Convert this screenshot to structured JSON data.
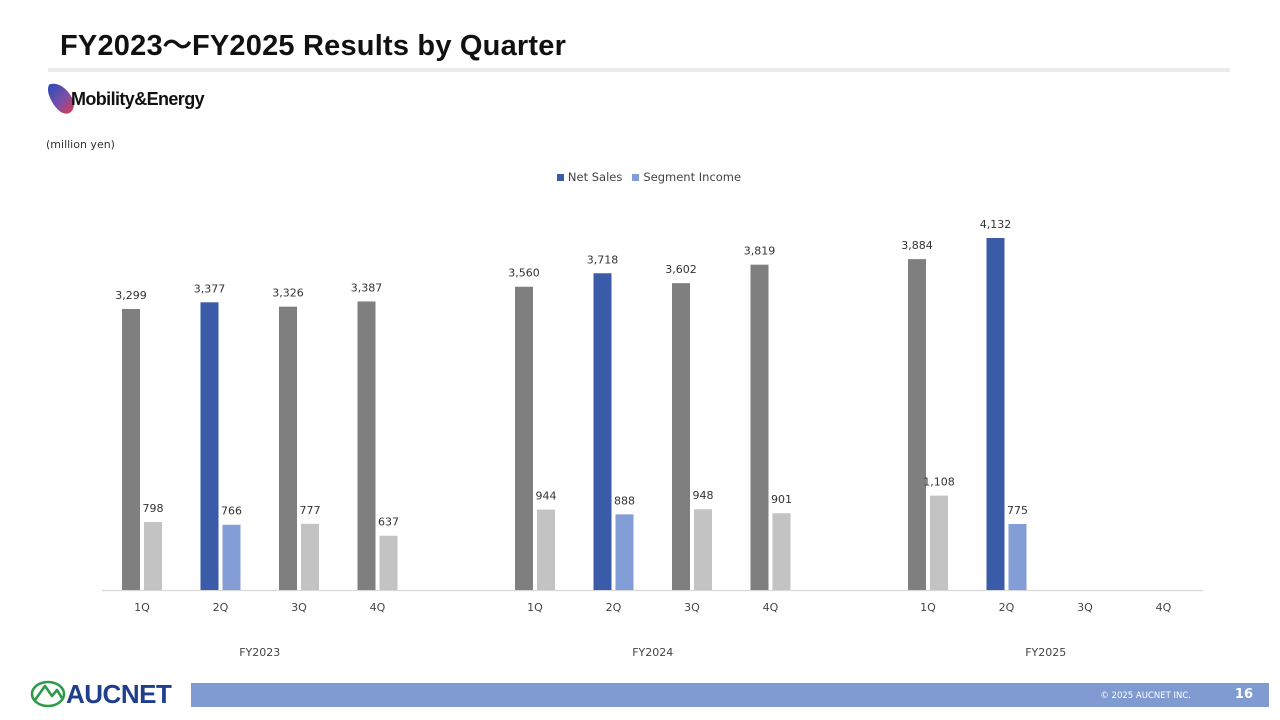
{
  "header": {
    "title": "FY2023～FY2025 Results by Quarter"
  },
  "segment": {
    "name": "Mobility&Energy",
    "icon": "mobility-energy-logo-icon"
  },
  "unit_note": "(million yen)",
  "colors": {
    "net_sales_past": "#7f7f7f",
    "net_sales_current": "#3a5ba8",
    "segment_income_past": "#c3c3c3",
    "segment_income_current": "#839ed6",
    "axis": "#d9d9d9",
    "footer": "#7f9bd1",
    "brand": "#1f3f8c"
  },
  "chart_data": {
    "type": "bar",
    "legend": [
      "Net Sales",
      "Segment Income"
    ],
    "legend_position": "top",
    "groups": [
      "FY2023",
      "FY2024",
      "FY2025"
    ],
    "categories": [
      "1Q",
      "2Q",
      "3Q",
      "4Q"
    ],
    "ylim": [
      0,
      4700
    ],
    "grid": false,
    "series": [
      {
        "name": "Net Sales",
        "values": [
          [
            3299,
            3377,
            3326,
            3387
          ],
          [
            3560,
            3718,
            3602,
            3819
          ],
          [
            3884,
            4132,
            null,
            null
          ]
        ]
      },
      {
        "name": "Segment Income",
        "values": [
          [
            798,
            766,
            777,
            637
          ],
          [
            944,
            888,
            948,
            901
          ],
          [
            1108,
            775,
            null,
            null
          ]
        ]
      }
    ],
    "highlight": {
      "group": 2,
      "category": 1
    }
  },
  "footer": {
    "brand": "AUCNET",
    "brand_icon": "aucnet-logo-icon",
    "copyright": "© 2025 AUCNET INC.",
    "page": "16"
  }
}
